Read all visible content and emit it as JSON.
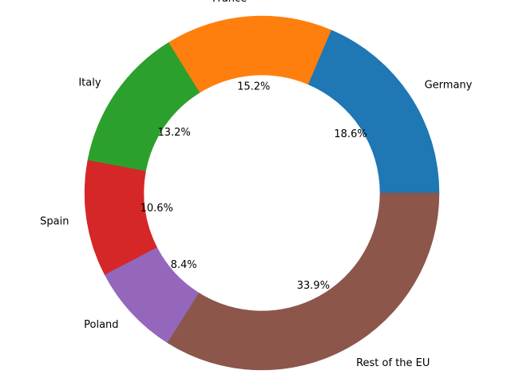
{
  "chart_data": {
    "type": "pie",
    "variant": "donut",
    "title": "",
    "categories": [
      "Germany",
      "France",
      "Italy",
      "Spain",
      "Poland",
      "Rest of the EU"
    ],
    "values": [
      18.6,
      15.2,
      13.2,
      10.6,
      8.4,
      33.9
    ],
    "value_labels": [
      "18.6%",
      "15.2%",
      "13.2%",
      "10.6%",
      "8.4%",
      "33.9%"
    ],
    "colors": [
      "#1f77b4",
      "#ff7f0e",
      "#2ca02c",
      "#d62728",
      "#9467bd",
      "#8c564b"
    ],
    "start_angle_deg": 0,
    "direction": "counterclockwise",
    "legend": "none"
  }
}
